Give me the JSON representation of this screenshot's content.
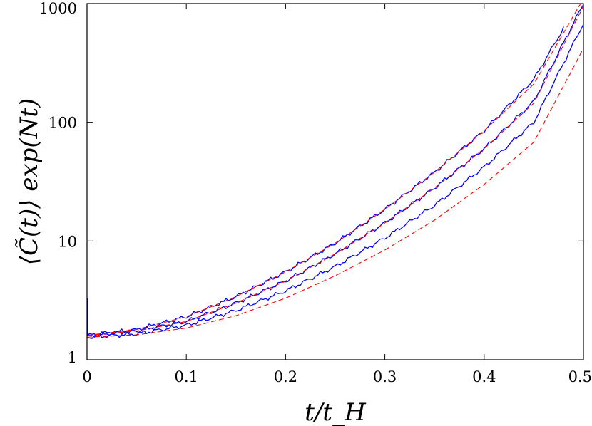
{
  "chart_data": {
    "type": "line",
    "xlabel": "t/t_H",
    "ylabel": "⟨C̃(t)⟩ exp(Nt)",
    "xlim": [
      0,
      0.5
    ],
    "ylim": [
      1,
      1000
    ],
    "yscale": "log",
    "grid": false,
    "x_ticks": [
      {
        "value": 0,
        "label": "0"
      },
      {
        "value": 0.1,
        "label": "0.1"
      },
      {
        "value": 0.2,
        "label": "0.2"
      },
      {
        "value": 0.3,
        "label": "0.3"
      },
      {
        "value": 0.4,
        "label": "0.4"
      },
      {
        "value": 0.5,
        "label": "0.5"
      }
    ],
    "y_ticks": [
      {
        "value": 1,
        "label": "1"
      },
      {
        "value": 10,
        "label": "10"
      },
      {
        "value": 100,
        "label": "100"
      },
      {
        "value": 1000,
        "label": "1000"
      }
    ],
    "colors": {
      "simulation": "#0000ff",
      "theory": "#ff0000"
    },
    "series": [
      {
        "style": "solid",
        "color": "#0000ff",
        "x": [
          0,
          0.05,
          0.1,
          0.15,
          0.2,
          0.25,
          0.3,
          0.35,
          0.4,
          0.45,
          0.48
        ],
        "y": [
          1.6,
          1.8,
          2.3,
          3.4,
          5.5,
          9.6,
          18.5,
          38,
          85,
          230,
          620
        ]
      },
      {
        "style": "solid",
        "color": "#0000ff",
        "x": [
          0,
          0.05,
          0.1,
          0.15,
          0.2,
          0.25,
          0.3,
          0.35,
          0.4,
          0.45,
          0.5
        ],
        "y": [
          1.6,
          1.75,
          2.1,
          3.0,
          4.6,
          7.8,
          14.2,
          28,
          60,
          150,
          1000
        ]
      },
      {
        "style": "solid",
        "color": "#0000ff",
        "x": [
          0,
          0.05,
          0.1,
          0.15,
          0.2,
          0.25,
          0.3,
          0.35,
          0.4,
          0.45,
          0.5
        ],
        "y": [
          1.55,
          1.65,
          1.95,
          2.6,
          3.8,
          6.1,
          10.6,
          20,
          42,
          100,
          680
        ]
      },
      {
        "style": "dashed",
        "color": "#ff0000",
        "x": [
          0,
          0.05,
          0.1,
          0.15,
          0.2,
          0.25,
          0.3,
          0.35,
          0.4,
          0.45,
          0.5
        ],
        "y": [
          1.6,
          1.8,
          2.3,
          3.4,
          5.5,
          9.6,
          18.5,
          38,
          85,
          210,
          1100
        ]
      },
      {
        "style": "dashed",
        "color": "#ff0000",
        "x": [
          0,
          0.05,
          0.1,
          0.15,
          0.2,
          0.25,
          0.3,
          0.35,
          0.4,
          0.45,
          0.5
        ],
        "y": [
          1.6,
          1.75,
          2.1,
          3.0,
          4.6,
          7.8,
          14.2,
          28,
          60,
          145,
          950
        ]
      },
      {
        "style": "dashed",
        "color": "#ff0000",
        "x": [
          0,
          0.05,
          0.1,
          0.15,
          0.2,
          0.25,
          0.3,
          0.35,
          0.4,
          0.45,
          0.5
        ],
        "y": [
          1.55,
          1.62,
          1.85,
          2.35,
          3.3,
          5.1,
          8.4,
          15,
          30,
          68,
          420
        ]
      }
    ]
  }
}
